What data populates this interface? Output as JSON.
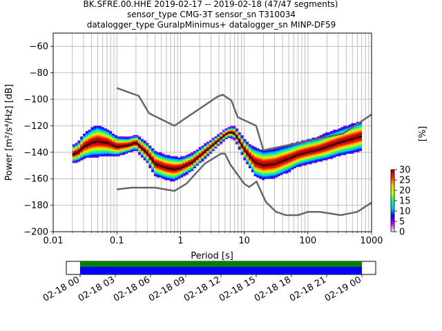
{
  "chart_data": {
    "type": "heatmap",
    "title_lines": [
      "BK.SFRE.00.HHE   2019-02-17 -- 2019-02-18  (47/47 segments)",
      "sensor_type CMG-3T sensor_sn T310034",
      "datalogger_type GuralpMinimus+ datalogger_sn MINP-DF59"
    ],
    "xlabel": "Period [s]",
    "ylabel": "Power [m²/s⁴/Hz] [dB]",
    "xscale": "log",
    "xlim": [
      0.01,
      1000
    ],
    "ylim": [
      -200,
      -50
    ],
    "xticks": [
      0.01,
      0.1,
      1,
      10,
      100,
      1000
    ],
    "xtick_labels": [
      "0.01",
      "0.1",
      "1",
      "10",
      "100",
      "1000"
    ],
    "yticks": [
      -200,
      -180,
      -160,
      -140,
      -120,
      -100,
      -80,
      -60
    ],
    "grid": true,
    "colorbar": {
      "label": "[%]",
      "range": [
        0,
        30
      ],
      "ticks": [
        0,
        5,
        10,
        15,
        20,
        25,
        30
      ],
      "colors": [
        "#ffffff",
        "#cc00ff",
        "#0000ff",
        "#00c8ff",
        "#00ff80",
        "#c8ff00",
        "#ffc800",
        "#ff2000",
        "#a00000"
      ]
    },
    "noise_models": {
      "high": {
        "period": [
          0.1,
          0.22,
          0.32,
          0.8,
          3.8,
          4.6,
          6.3,
          7.9,
          15.4,
          20,
          354.8,
          1000
        ],
        "db": [
          -91.5,
          -97.4,
          -110.5,
          -120,
          -98,
          -96.5,
          -101,
          -113.5,
          -120,
          -138.5,
          -126,
          -111.5
        ]
      },
      "low": {
        "period": [
          0.1,
          0.17,
          0.4,
          0.8,
          1.24,
          2.4,
          4.3,
          5,
          6,
          10,
          12,
          15.6,
          21.9,
          31.6,
          45,
          70,
          101,
          154,
          328,
          600,
          1000
        ],
        "db": [
          -168,
          -166.7,
          -166.7,
          -169.2,
          -163.7,
          -148.6,
          -141.1,
          -141.1,
          -149,
          -163.8,
          -166.2,
          -162.1,
          -177.5,
          -185,
          -187.5,
          -187.5,
          -185,
          -185,
          -187.5,
          -185,
          -178
        ]
      }
    },
    "psd_mode": {
      "period": [
        0.02,
        0.025,
        0.03,
        0.04,
        0.05,
        0.07,
        0.1,
        0.15,
        0.2,
        0.3,
        0.4,
        0.6,
        0.8,
        1.0,
        1.5,
        2,
        3,
        4,
        5,
        6,
        7,
        8,
        10,
        13,
        15,
        20,
        30,
        50,
        70,
        100,
        150,
        200,
        300,
        500,
        700
      ],
      "db": [
        -142,
        -140,
        -136,
        -133,
        -132,
        -133,
        -136,
        -135,
        -133,
        -141,
        -149,
        -152,
        -153,
        -152,
        -148,
        -143,
        -136,
        -131,
        -127,
        -125,
        -126,
        -130,
        -138,
        -145,
        -148,
        -150,
        -149,
        -145,
        -142,
        -140,
        -138,
        -136,
        -133,
        -130,
        -128
      ]
    },
    "psd_spread_db": [
      3.5,
      4.0,
      5.0,
      6.0,
      6.5,
      5.5,
      4.0,
      3.0,
      3.0,
      4.0,
      5.0,
      5.0,
      5.0,
      4.0,
      3.5,
      3.0,
      2.5,
      2.0,
      2.0,
      2.0,
      2.5,
      3.0,
      4.0,
      5.0,
      6.0,
      6.0,
      6.0,
      5.5,
      5.0,
      5.0,
      5.0,
      5.5,
      5.5,
      6.0,
      6.0
    ]
  },
  "timeline": {
    "tick_labels": [
      "02-18 00",
      "02-18 03",
      "02-18 06",
      "02-18 09",
      "02-18 12",
      "02-18 15",
      "02-18 18",
      "02-18 21",
      "02-19 00"
    ],
    "data_color": "#0000ff",
    "coverage_color": "#008000",
    "data_coverage_fraction": 1.0
  }
}
